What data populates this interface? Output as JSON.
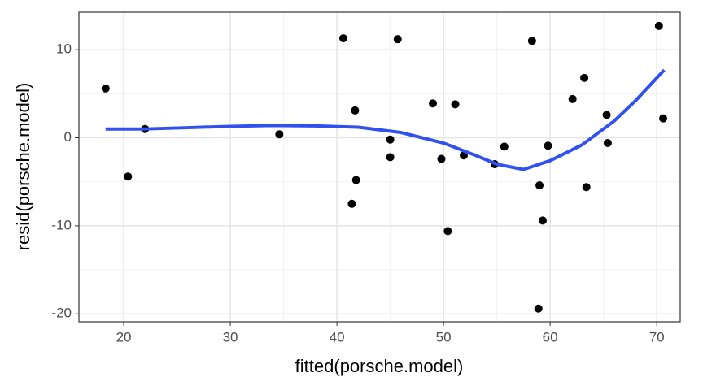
{
  "chart_data": {
    "type": "scatter",
    "x_label": "fitted(porsche.model)",
    "y_label": "resid(porsche.model)",
    "xlim": [
      15.8,
      72.2
    ],
    "ylim": [
      -20.9,
      14.26
    ],
    "xticks": [
      20,
      30,
      40,
      50,
      60,
      70
    ],
    "yticks": [
      -20,
      -10,
      0,
      10
    ],
    "x_minor_ticks": [
      25,
      35,
      45,
      55,
      65
    ],
    "y_minor_ticks": [
      -15,
      -5,
      5
    ],
    "grid": true,
    "points": {
      "color": "#000000",
      "x": [
        18.3,
        20.4,
        22.0,
        34.6,
        40.6,
        41.4,
        41.7,
        41.8,
        45.0,
        45.0,
        45.7,
        49.0,
        49.8,
        50.4,
        51.1,
        51.9,
        54.8,
        55.7,
        58.3,
        58.9,
        59.0,
        59.3,
        59.8,
        62.1,
        63.2,
        63.4,
        65.3,
        65.4,
        70.2,
        70.6
      ],
      "y": [
        5.6,
        -4.4,
        1.0,
        0.4,
        11.3,
        -7.5,
        3.1,
        -4.8,
        -0.2,
        -2.2,
        11.2,
        3.9,
        -2.4,
        -10.6,
        3.8,
        -2.0,
        -3.0,
        -1.0,
        11.0,
        -19.4,
        -5.4,
        -9.4,
        -0.9,
        4.4,
        6.8,
        -5.6,
        2.6,
        -0.6,
        12.7,
        2.2
      ]
    },
    "smooth": {
      "color": "#3050f0",
      "x": [
        18.3,
        22,
        26,
        30,
        34,
        38,
        42,
        46,
        50,
        53,
        55,
        57.5,
        60,
        63,
        66,
        68,
        70.7
      ],
      "y": [
        1.0,
        1.0,
        1.15,
        1.3,
        1.4,
        1.35,
        1.2,
        0.6,
        -0.6,
        -2.0,
        -3.0,
        -3.6,
        -2.6,
        -0.8,
        1.9,
        4.2,
        7.7
      ]
    }
  }
}
